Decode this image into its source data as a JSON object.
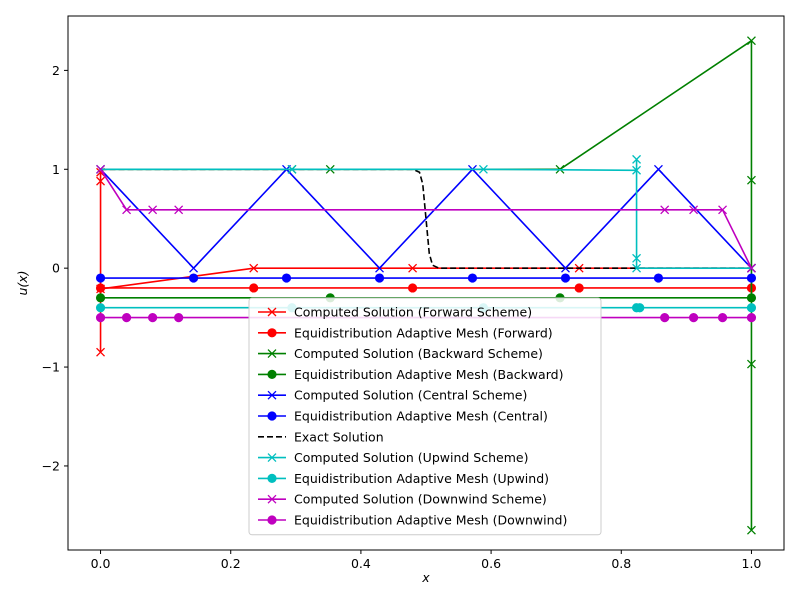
{
  "chart_data": {
    "type": "line",
    "title": "",
    "xlabel": "x",
    "ylabel": "u(x)",
    "xlim": [
      -0.05,
      1.05
    ],
    "ylim": [
      -2.85,
      2.55
    ],
    "xticks": [
      0.0,
      0.2,
      0.4,
      0.6,
      0.8,
      1.0
    ],
    "xtick_labels": [
      "0.0",
      "0.2",
      "0.4",
      "0.6",
      "0.8",
      "1.0"
    ],
    "yticks": [
      -2,
      -1,
      0,
      1,
      2
    ],
    "ytick_labels": [
      "−2",
      "−1",
      "0",
      "1",
      "2"
    ],
    "grid": false,
    "legend_position": "lower center",
    "series": [
      {
        "name": "Computed Solution (Forward Scheme)",
        "color": "#ff0000",
        "marker": "x",
        "dash": "solid",
        "x": [
          0.0,
          0.0,
          0.0,
          0.0,
          0.2353,
          0.4794,
          0.7353,
          1.0,
          1.0
        ],
        "y": [
          -0.85,
          0.88,
          0.97,
          -0.21,
          0.0,
          0.0,
          0.0,
          0.0,
          0.0
        ]
      },
      {
        "name": "Equidistribution Adaptive Mesh (Forward)",
        "color": "#ff0000",
        "marker": "o",
        "dash": "solid",
        "x": [
          0.0,
          0.2353,
          0.4794,
          0.7353,
          1.0
        ],
        "y": [
          -0.2,
          -0.2,
          -0.2,
          -0.2,
          -0.2
        ]
      },
      {
        "name": "Computed Solution (Backward Scheme)",
        "color": "#008000",
        "marker": "x",
        "dash": "solid",
        "x": [
          0.0,
          0.2941,
          0.3529,
          0.7059,
          1.0,
          1.0,
          1.0,
          1.0,
          1.0
        ],
        "y": [
          1.0,
          1.0,
          1.0,
          1.0,
          2.3,
          -2.65,
          -0.97,
          0.89,
          0.0
        ]
      },
      {
        "name": "Equidistribution Adaptive Mesh (Backward)",
        "color": "#008000",
        "marker": "o",
        "dash": "solid",
        "x": [
          0.0,
          0.3529,
          0.7059,
          1.0
        ],
        "y": [
          -0.3,
          -0.3,
          -0.3,
          -0.3
        ]
      },
      {
        "name": "Computed Solution (Central Scheme)",
        "color": "#0000ff",
        "marker": "x",
        "dash": "solid",
        "x": [
          0.0,
          0.1429,
          0.2857,
          0.4286,
          0.5714,
          0.7143,
          0.8571,
          1.0
        ],
        "y": [
          1.0,
          0.0,
          1.0,
          0.0,
          1.0,
          0.0,
          1.0,
          0.0
        ]
      },
      {
        "name": "Equidistribution Adaptive Mesh (Central)",
        "color": "#0000ff",
        "marker": "o",
        "dash": "solid",
        "x": [
          0.0,
          0.1429,
          0.2857,
          0.4286,
          0.5714,
          0.7143,
          0.8571,
          1.0
        ],
        "y": [
          -0.1,
          -0.1,
          -0.1,
          -0.1,
          -0.1,
          -0.1,
          -0.1,
          -0.1
        ]
      },
      {
        "name": "Exact Solution",
        "color": "#000000",
        "marker": "none",
        "dash": "dashed",
        "x": [
          0.0,
          0.48,
          0.49,
          0.495,
          0.5,
          0.505,
          0.51,
          0.52,
          1.0
        ],
        "y": [
          1.0,
          1.0,
          0.97,
          0.85,
          0.5,
          0.15,
          0.03,
          0.0,
          0.0
        ]
      },
      {
        "name": "Computed Solution (Upwind Scheme)",
        "color": "#00bfbf",
        "marker": "x",
        "dash": "solid",
        "x": [
          0.0,
          0.2941,
          0.5882,
          0.8235,
          0.8235,
          0.8235,
          0.8235,
          1.0
        ],
        "y": [
          1.0,
          1.0,
          1.0,
          0.99,
          1.1,
          0.1,
          0.0,
          0.0
        ]
      },
      {
        "name": "Equidistribution Adaptive Mesh (Upwind)",
        "color": "#00bfbf",
        "marker": "o",
        "dash": "solid",
        "x": [
          0.0,
          0.2941,
          0.5882,
          0.8235,
          0.8284,
          1.0
        ],
        "y": [
          -0.4,
          -0.4,
          -0.4,
          -0.4,
          -0.4,
          -0.4
        ]
      },
      {
        "name": "Computed Solution (Downwind Scheme)",
        "color": "#bf00bf",
        "marker": "x",
        "dash": "solid",
        "x": [
          0.0,
          0.04,
          0.08,
          0.12,
          0.8667,
          0.9111,
          0.9556,
          1.0
        ],
        "y": [
          1.0,
          0.59,
          0.59,
          0.59,
          0.59,
          0.59,
          0.59,
          0.0
        ]
      },
      {
        "name": "Equidistribution Adaptive Mesh (Downwind)",
        "color": "#bf00bf",
        "marker": "o",
        "dash": "solid",
        "x": [
          0.0,
          0.04,
          0.08,
          0.12,
          0.8667,
          0.9111,
          0.9556,
          1.0
        ],
        "y": [
          -0.5,
          -0.5,
          -0.5,
          -0.5,
          -0.5,
          -0.5,
          -0.5,
          -0.5
        ]
      }
    ]
  }
}
